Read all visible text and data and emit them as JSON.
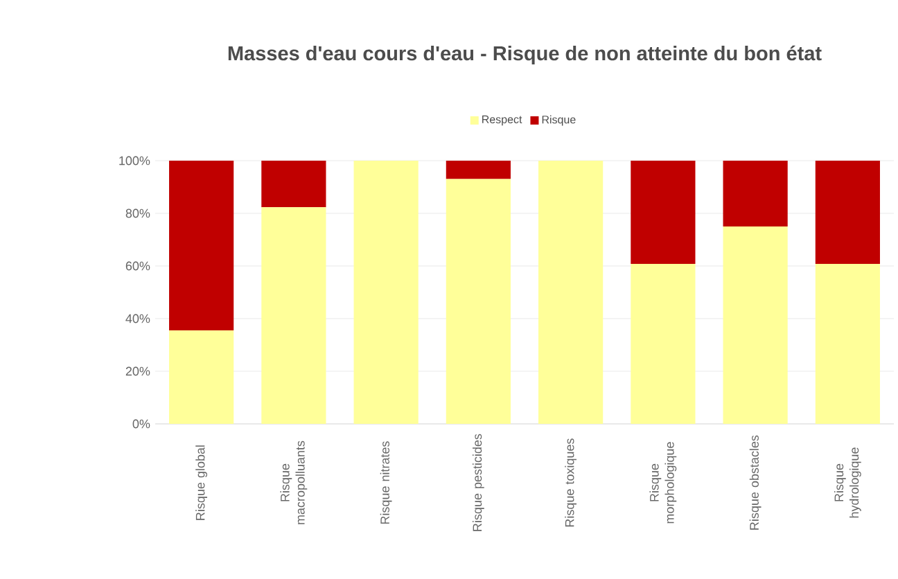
{
  "chart_data": {
    "type": "bar",
    "title": "Masses d'eau cours d'eau - Risque de non atteinte du bon état",
    "categories": [
      "Risque global",
      "Risque macropolluants",
      "Risque nitrates",
      "Risque pesticides",
      "Risque toxiques",
      "Risque morphologique",
      "Risque obstacles",
      "Risque hydrologique"
    ],
    "series": [
      {
        "name": "Respect",
        "color": "#ffff99",
        "values": [
          35.5,
          82.3,
          100,
          93,
          100,
          60.8,
          75,
          60.8
        ]
      },
      {
        "name": "Risque",
        "color": "#c00000",
        "values": [
          64.5,
          17.7,
          0,
          7,
          0,
          39.2,
          25,
          39.2
        ]
      }
    ],
    "stacked": true,
    "ylim": [
      0,
      100
    ],
    "yticks": [
      {
        "value": 0,
        "label": "0%"
      },
      {
        "value": 20,
        "label": "20%"
      },
      {
        "value": 40,
        "label": "40%"
      },
      {
        "value": 60,
        "label": "60%"
      },
      {
        "value": 80,
        "label": "80%"
      },
      {
        "value": 100,
        "label": "100%"
      }
    ],
    "grid": "y",
    "legend": "top"
  }
}
